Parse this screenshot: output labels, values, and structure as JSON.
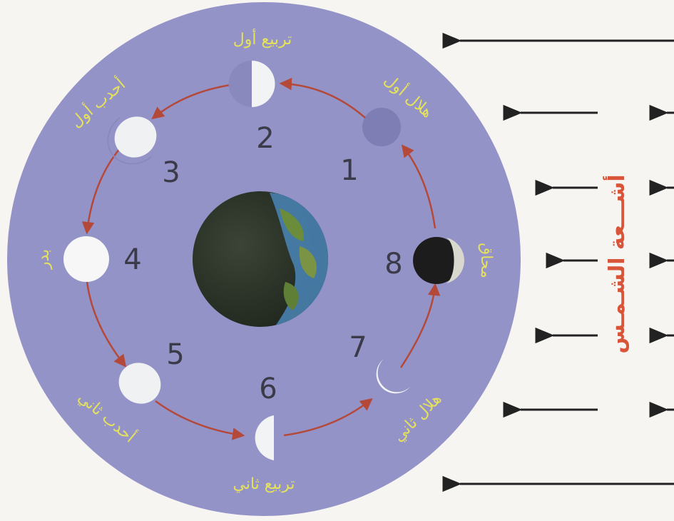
{
  "sun_rays_label": "أشـــعة الشـمـس",
  "phases": [
    {
      "id": 1,
      "number": "1",
      "label": "هلال أول"
    },
    {
      "id": 2,
      "number": "2",
      "label": "تربيع أول"
    },
    {
      "id": 3,
      "number": "3",
      "label": "أحدب أول"
    },
    {
      "id": 4,
      "number": "4",
      "label": "بدر"
    },
    {
      "id": 5,
      "number": "5",
      "label": "أحدب ثاني"
    },
    {
      "id": 6,
      "number": "6",
      "label": "تربيع ثاني"
    },
    {
      "id": 7,
      "number": "7",
      "label": "هلال ثاني"
    },
    {
      "id": 8,
      "number": "8",
      "label": "محاق"
    }
  ],
  "colors": {
    "disc": "#9493c8",
    "orbit": "#b4493a",
    "label": "#e6e25a",
    "sun_text": "#d8553a",
    "earth_dark": "#2f3a2c",
    "earth_ocean": "#4a86b8",
    "moon_lit": "#f4f5f6",
    "moon_dark": "#1c1c1c"
  },
  "icons": {
    "earth": "earth-icon",
    "ray": "arrow-left-icon"
  }
}
